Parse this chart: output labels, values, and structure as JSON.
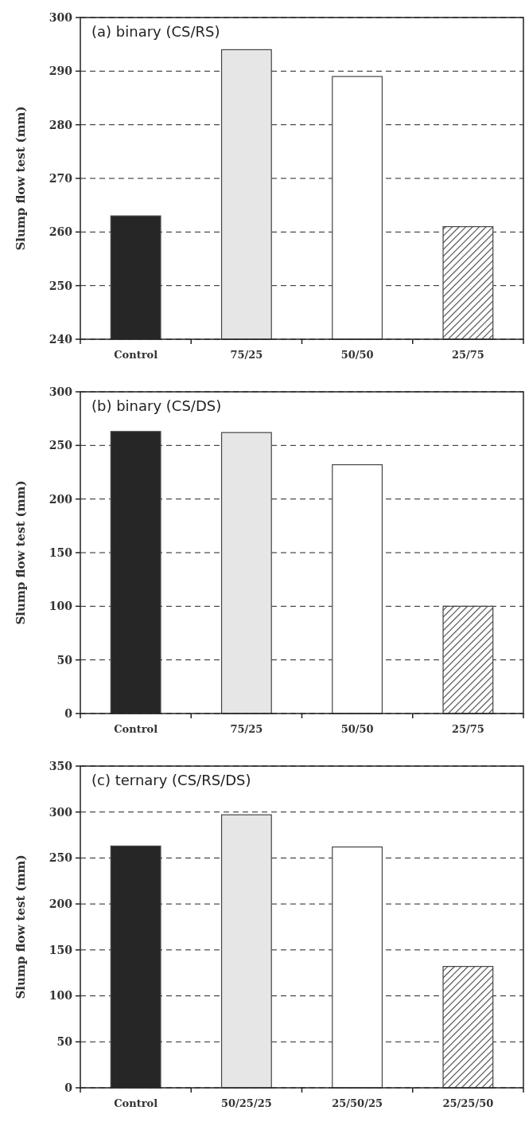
{
  "chart_data": [
    {
      "type": "bar",
      "title": "(a) binary (CS/RS)",
      "ylabel": "Slump flow test (mm)",
      "categories": [
        "Control",
        "75/25",
        "50/50",
        "25/75"
      ],
      "values": [
        263,
        294,
        289,
        261
      ],
      "colors": [
        "#262626",
        "#e6e6e6",
        "#ffffff",
        "#444444"
      ],
      "ylim": [
        240,
        300
      ],
      "yticks": [
        240,
        250,
        260,
        270,
        280,
        290,
        300
      ],
      "grid": "y"
    },
    {
      "type": "bar",
      "title": "(b) binary (CS/DS)",
      "ylabel": "Slump flow test (mm)",
      "categories": [
        "Control",
        "75/25",
        "50/50",
        "25/75"
      ],
      "values": [
        263,
        262,
        232,
        100
      ],
      "colors": [
        "#262626",
        "#e6e6e6",
        "#ffffff",
        "#444444"
      ],
      "ylim": [
        0,
        300
      ],
      "yticks": [
        0,
        50,
        100,
        150,
        200,
        250,
        300
      ],
      "grid": "y"
    },
    {
      "type": "bar",
      "title": "(c) ternary (CS/RS/DS)",
      "ylabel": "Slump flow test (mm)",
      "categories": [
        "Control",
        "50/25/25",
        "25/50/25",
        "25/25/50"
      ],
      "values": [
        263,
        297,
        262,
        132
      ],
      "colors": [
        "#262626",
        "#e6e6e6",
        "#ffffff",
        "#444444"
      ],
      "ylim": [
        0,
        350
      ],
      "yticks": [
        0,
        50,
        100,
        150,
        200,
        250,
        300,
        350
      ],
      "grid": "y"
    }
  ]
}
